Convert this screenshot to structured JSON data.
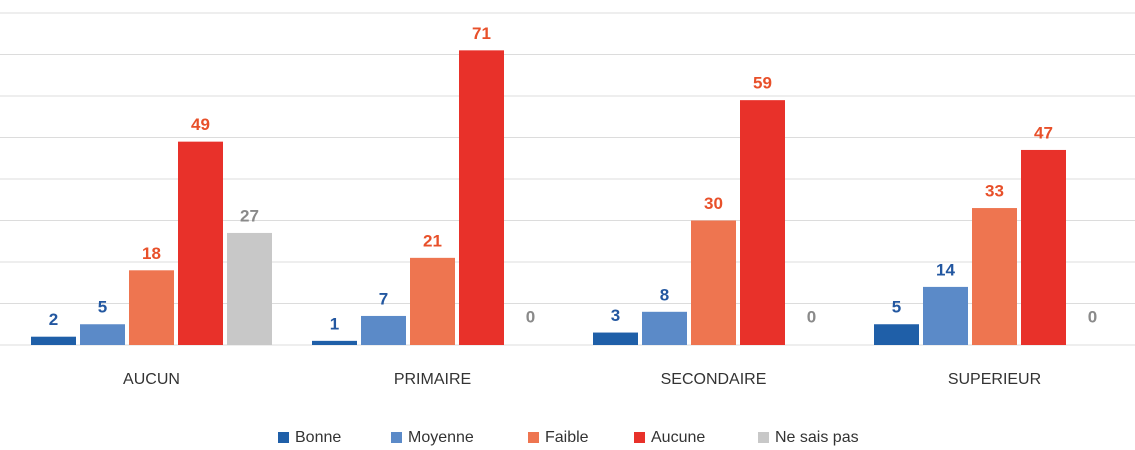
{
  "chart_data": {
    "type": "bar",
    "categories": [
      "AUCUN",
      "PRIMAIRE",
      "SECONDAIRE",
      "SUPERIEUR"
    ],
    "series": [
      {
        "name": "Bonne",
        "color": "#1f5fa8",
        "label_color": "#2357a0",
        "values": [
          2,
          1,
          3,
          5
        ]
      },
      {
        "name": "Moyenne",
        "color": "#5b8ac8",
        "label_color": "#2357a0",
        "values": [
          5,
          7,
          8,
          14
        ]
      },
      {
        "name": "Faible",
        "color": "#ee7550",
        "label_color": "#e8502a",
        "values": [
          18,
          21,
          30,
          33
        ]
      },
      {
        "name": "Aucune",
        "color": "#e8312a",
        "label_color": "#e8502a",
        "values": [
          49,
          71,
          59,
          47
        ]
      },
      {
        "name": "Ne sais pas",
        "color": "#c8c8c8",
        "label_color": "#8a8a8a",
        "values": [
          27,
          0,
          0,
          0
        ]
      }
    ],
    "ylim": [
      0,
      80
    ],
    "yticks": [
      0,
      10,
      20,
      30,
      40,
      50,
      60,
      70,
      80
    ],
    "grid": true,
    "legend": "bottom"
  }
}
